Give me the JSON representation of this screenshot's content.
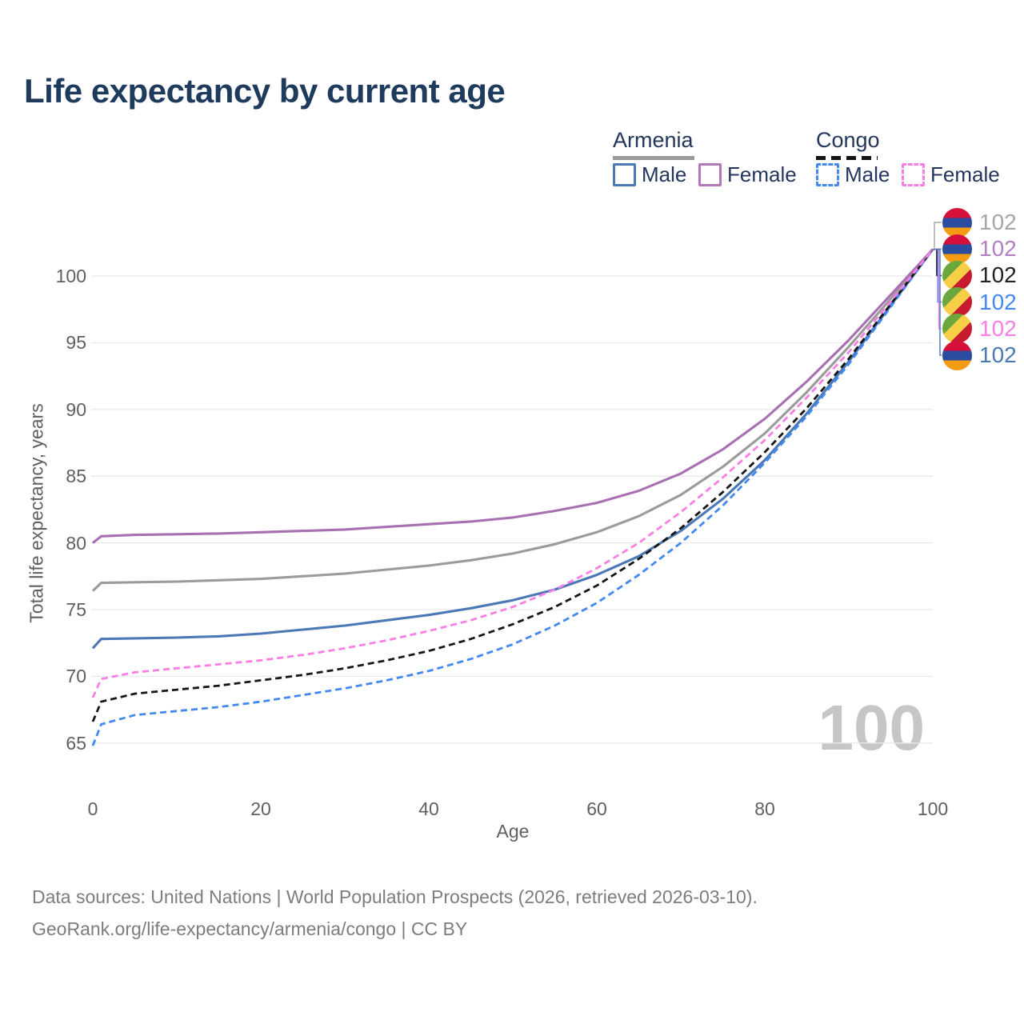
{
  "title": "Life expectancy by current age",
  "legend": {
    "groups": [
      {
        "label": "Armenia",
        "line_style": "solid",
        "items": [
          {
            "label": "Male",
            "color": "#4b79b5"
          },
          {
            "label": "Female",
            "color": "#b279b8"
          }
        ]
      },
      {
        "label": "Congo",
        "line_style": "dashed",
        "items": [
          {
            "label": "Male",
            "color": "#4489f2"
          },
          {
            "label": "Female",
            "color": "#fb7ee6"
          }
        ]
      }
    ]
  },
  "watermark": "100",
  "source": {
    "line1": "Data sources: United Nations | World Population Prospects (2026, retrieved 2026-03-10).",
    "line2": "GeoRank.org/life-expectancy/armenia/congo | CC BY"
  },
  "chart_data": {
    "type": "line",
    "title": "Life expectancy by current age",
    "xlabel": "Age",
    "ylabel": "Total life expectancy, years",
    "xlim": [
      0,
      100
    ],
    "ylim": [
      63.5,
      103.5
    ],
    "x_ticks": [
      0,
      20,
      40,
      60,
      80,
      100
    ],
    "y_ticks": [
      65,
      70,
      75,
      80,
      85,
      90,
      95,
      100
    ],
    "grid": true,
    "legend_position": "top-right",
    "hover_x_value": "100",
    "ages": [
      0,
      1,
      5,
      10,
      15,
      20,
      25,
      30,
      35,
      40,
      45,
      50,
      55,
      60,
      65,
      70,
      75,
      80,
      85,
      90,
      95,
      100
    ],
    "series": [
      {
        "id": "armenia-total",
        "name": "Armenia total",
        "flag": "armenia",
        "color": "#9b9b9b",
        "dash": false,
        "z": 1,
        "row": 0,
        "label_color": "#a6a6a6",
        "end_label": "102",
        "values": [
          76.4,
          77.0,
          77.05,
          77.1,
          77.2,
          77.3,
          77.5,
          77.7,
          78.0,
          78.3,
          78.7,
          79.2,
          79.9,
          80.8,
          82.0,
          83.6,
          85.7,
          88.2,
          91.3,
          94.7,
          98.3,
          102
        ]
      },
      {
        "id": "armenia-female",
        "name": "Armenia Female",
        "flag": "armenia",
        "color": "#a96fb3",
        "dash": false,
        "z": 5,
        "row": 1,
        "label_color": "#b27fc0",
        "end_label": "102",
        "values": [
          80.0,
          80.5,
          80.6,
          80.65,
          80.7,
          80.8,
          80.9,
          81.0,
          81.2,
          81.4,
          81.6,
          81.9,
          82.4,
          83.0,
          83.9,
          85.2,
          87.0,
          89.3,
          92.1,
          95.2,
          98.6,
          102
        ]
      },
      {
        "id": "congo-total",
        "name": "Congo total",
        "flag": "congo",
        "color": "#161616",
        "dash": true,
        "z": 4,
        "row": 2,
        "label_color": "#222222",
        "end_label": "102",
        "values": [
          66.6,
          68.1,
          68.7,
          69.0,
          69.3,
          69.7,
          70.1,
          70.6,
          71.2,
          71.9,
          72.8,
          73.9,
          75.2,
          76.8,
          78.8,
          81.1,
          83.8,
          86.8,
          90.1,
          93.8,
          97.9,
          102
        ]
      },
      {
        "id": "congo-male",
        "name": "Congo Male",
        "flag": "congo",
        "color": "#4489f2",
        "dash": true,
        "z": 3,
        "row": 3,
        "label_color": "#4489f2",
        "end_label": "102",
        "values": [
          64.8,
          66.4,
          67.1,
          67.4,
          67.7,
          68.1,
          68.6,
          69.1,
          69.7,
          70.4,
          71.3,
          72.4,
          73.8,
          75.5,
          77.6,
          80.0,
          82.8,
          86.0,
          89.5,
          93.4,
          97.7,
          102
        ]
      },
      {
        "id": "congo-female",
        "name": "Congo Female",
        "flag": "congo",
        "color": "#fb7ee6",
        "dash": true,
        "z": 6,
        "row": 4,
        "label_color": "#fb7ee6",
        "end_label": "102",
        "values": [
          68.4,
          69.8,
          70.3,
          70.6,
          70.9,
          71.2,
          71.6,
          72.1,
          72.7,
          73.4,
          74.2,
          75.2,
          76.5,
          78.1,
          80.0,
          82.3,
          84.9,
          87.7,
          90.9,
          94.3,
          98.1,
          102
        ]
      },
      {
        "id": "armenia-male",
        "name": "Armenia Male",
        "flag": "armenia",
        "color": "#4b79b5",
        "dash": false,
        "z": 2,
        "row": 5,
        "label_color": "#4b79b5",
        "end_label": "102",
        "values": [
          72.1,
          72.8,
          72.85,
          72.9,
          73.0,
          73.2,
          73.5,
          73.8,
          74.2,
          74.6,
          75.1,
          75.7,
          76.5,
          77.6,
          79.0,
          80.9,
          83.3,
          86.2,
          89.7,
          93.6,
          97.8,
          102
        ]
      }
    ]
  }
}
